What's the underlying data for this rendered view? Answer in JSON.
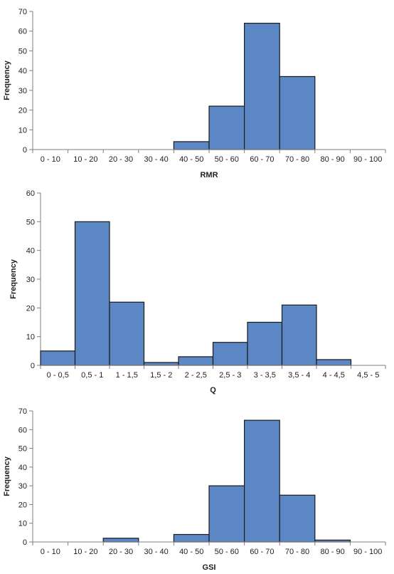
{
  "chart_data": [
    {
      "type": "bar",
      "xlabel": "RMR",
      "ylabel": "Frequency",
      "categories": [
        "0 - 10",
        "10 - 20",
        "20 - 30",
        "30 - 40",
        "40 - 50",
        "50 - 60",
        "60 - 70",
        "70 - 80",
        "80 - 90",
        "90 - 100"
      ],
      "values": [
        0,
        0,
        0,
        0,
        4,
        22,
        64,
        37,
        0,
        0
      ],
      "ylim": [
        0,
        70
      ],
      "yticks": [
        "0",
        "10",
        "20",
        "30",
        "40",
        "50",
        "60",
        "70"
      ],
      "grid": false,
      "legend": "none"
    },
    {
      "type": "bar",
      "xlabel": "Q",
      "ylabel": "Frequency",
      "categories": [
        "0 - 0,5",
        "0,5 - 1",
        "1 - 1,5",
        "1,5 - 2",
        "2 - 2,5",
        "2,5 - 3",
        "3 - 3,5",
        "3,5 - 4",
        "4 - 4,5",
        "4,5 - 5"
      ],
      "values": [
        5,
        50,
        22,
        1,
        3,
        8,
        15,
        21,
        2,
        0
      ],
      "ylim": [
        0,
        60
      ],
      "yticks": [
        "0",
        "10",
        "20",
        "30",
        "40",
        "50",
        "60"
      ],
      "grid": false,
      "legend": "none"
    },
    {
      "type": "bar",
      "xlabel": "GSI",
      "ylabel": "Frequency",
      "categories": [
        "0 - 10",
        "10 - 20",
        "20 - 30",
        "30 - 40",
        "40 - 50",
        "50 - 60",
        "60 - 70",
        "70 - 80",
        "80 - 90",
        "90 - 100"
      ],
      "values": [
        0,
        0,
        2,
        0,
        4,
        30,
        65,
        25,
        1,
        0
      ],
      "ylim": [
        0,
        70
      ],
      "yticks": [
        "0",
        "10",
        "20",
        "30",
        "40",
        "50",
        "60",
        "70"
      ],
      "grid": false,
      "legend": "none"
    }
  ],
  "colors": {
    "bar_fill": "#5b87c5",
    "bar_stroke": "#1a1a1a",
    "axis": "#7f7f7f",
    "text": "#222222"
  }
}
